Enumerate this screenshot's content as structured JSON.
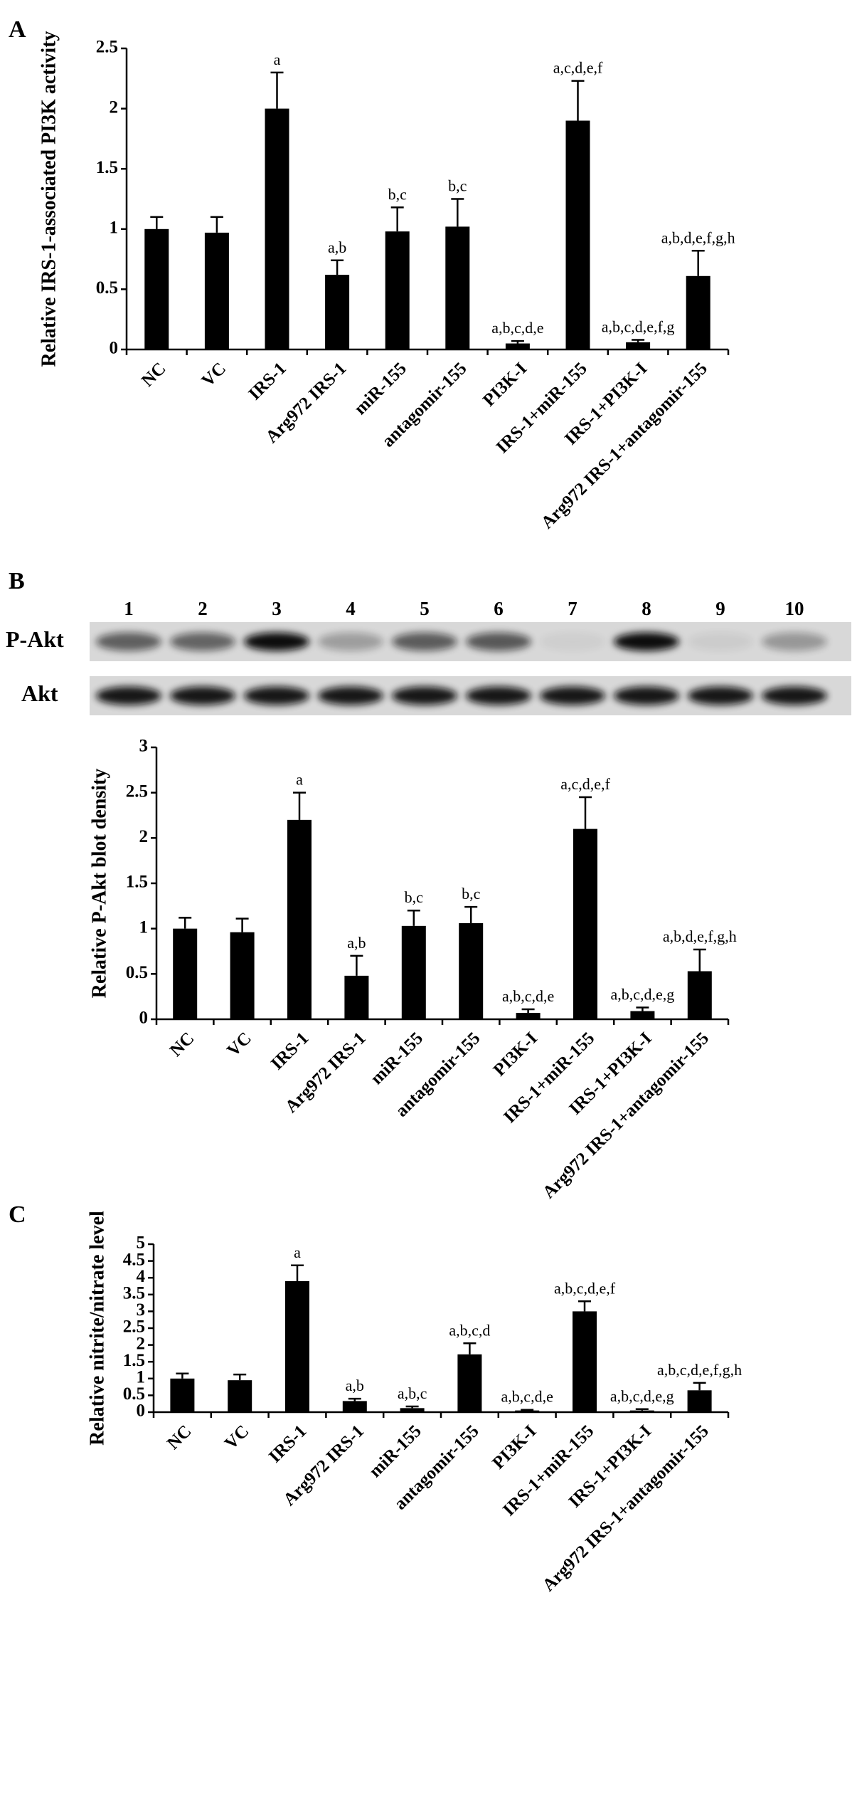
{
  "chart_data": [
    {
      "type": "bar",
      "panel": "A",
      "ylabel": "Relative IRS-1-associated PI3K activity",
      "color": "#000000",
      "categories": [
        "NC",
        "VC",
        "IRS-1",
        "Arg972 IRS-1",
        "miR-155",
        "antagomir-155",
        "PI3K-I",
        "IRS-1+miR-155",
        "IRS-1+PI3K-I",
        "Arg972 IRS-1+antagomir-155"
      ],
      "values": [
        1.0,
        0.97,
        2.0,
        0.62,
        0.98,
        1.02,
        0.05,
        1.9,
        0.06,
        0.61
      ],
      "errors": [
        0.1,
        0.13,
        0.3,
        0.12,
        0.2,
        0.23,
        0.02,
        0.33,
        0.02,
        0.21
      ],
      "annotations": [
        null,
        null,
        "a",
        "a,b",
        "b,c",
        "b,c",
        "a,b,c,d,e",
        "a,c,d,e,f",
        "a,b,c,d,e,f,g",
        "a,b,d,e,f,g,h"
      ],
      "ylim": [
        0,
        2.5
      ],
      "yticks": [
        0,
        0.5,
        1,
        1.5,
        2,
        2.5
      ]
    },
    {
      "type": "bar",
      "panel": "B",
      "ylabel": "Relative P-Akt blot density",
      "color": "#000000",
      "blot": {
        "lanes": [
          "1",
          "2",
          "3",
          "4",
          "5",
          "6",
          "7",
          "8",
          "9",
          "10"
        ],
        "rows": [
          "P-Akt",
          "Akt"
        ]
      },
      "categories": [
        "NC",
        "VC",
        "IRS-1",
        "Arg972 IRS-1",
        "miR-155",
        "antagomir-155",
        "PI3K-I",
        "IRS-1+miR-155",
        "IRS-1+PI3K-I",
        "Arg972 IRS-1+antagomir-155"
      ],
      "values": [
        1.0,
        0.96,
        2.2,
        0.48,
        1.03,
        1.06,
        0.07,
        2.1,
        0.09,
        0.53
      ],
      "errors": [
        0.12,
        0.15,
        0.3,
        0.22,
        0.17,
        0.18,
        0.04,
        0.35,
        0.04,
        0.24
      ],
      "annotations": [
        null,
        null,
        "a",
        "a,b",
        "b,c",
        "b,c",
        "a,b,c,d,e",
        "a,c,d,e,f",
        "a,b,c,d,e,g",
        "a,b,d,e,f,g,h"
      ],
      "ylim": [
        0,
        3
      ],
      "yticks": [
        0,
        0.5,
        1,
        1.5,
        2,
        2.5,
        3
      ]
    },
    {
      "type": "bar",
      "panel": "C",
      "ylabel": "Relative nitrite/nitrate level",
      "color": "#000000",
      "categories": [
        "NC",
        "VC",
        "IRS-1",
        "Arg972 IRS-1",
        "miR-155",
        "antagomir-155",
        "PI3K-I",
        "IRS-1+miR-155",
        "IRS-1+PI3K-I",
        "Arg972 IRS-1+antagomir-155"
      ],
      "values": [
        1.0,
        0.95,
        3.9,
        0.33,
        0.12,
        1.72,
        0.05,
        3.0,
        0.05,
        0.65
      ],
      "errors": [
        0.15,
        0.17,
        0.47,
        0.07,
        0.05,
        0.33,
        0.02,
        0.3,
        0.04,
        0.22
      ],
      "annotations": [
        null,
        null,
        "a",
        "a,b",
        "a,b,c",
        "a,b,c,d",
        "a,b,c,d,e",
        "a,b,c,d,e,f",
        "a,b,c,d,e,g",
        "a,b,c,d,e,f,g,h"
      ],
      "ylim": [
        0,
        5
      ],
      "yticks": [
        0,
        0.5,
        1,
        1.5,
        2,
        2.5,
        3,
        3.5,
        4,
        4.5,
        5
      ]
    }
  ]
}
